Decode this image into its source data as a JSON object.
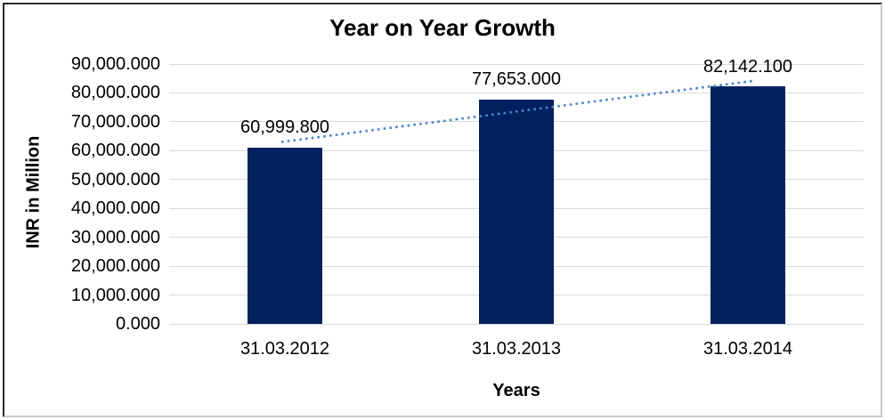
{
  "chart_data": {
    "type": "bar",
    "title": "Year on Year Growth",
    "xlabel": "Years",
    "ylabel": "INR in Million",
    "categories": [
      "31.03.2012",
      "31.03.2013",
      "31.03.2014"
    ],
    "values": [
      60999.8,
      77653.0,
      82142.1
    ],
    "data_labels": [
      "60,999.800",
      "77,653.000",
      "82,142.100"
    ],
    "ylim": [
      0,
      90000
    ],
    "ytick_step": 10000,
    "ytick_labels": [
      "0.000",
      "10,000.000",
      "20,000.000",
      "30,000.000",
      "40,000.000",
      "50,000.000",
      "60,000.000",
      "70,000.000",
      "80,000.000",
      "90,000.000"
    ],
    "grid": true,
    "legend": "none",
    "colors": {
      "bar": "#02215E",
      "gridline": "#D9D9D9",
      "trendline": "#4A86C8",
      "text": "#000000"
    },
    "trendline": {
      "type": "linear",
      "style": "dotted",
      "color": "#4A86C8",
      "start_value": 63027.2,
      "end_value": 84169.5
    }
  }
}
